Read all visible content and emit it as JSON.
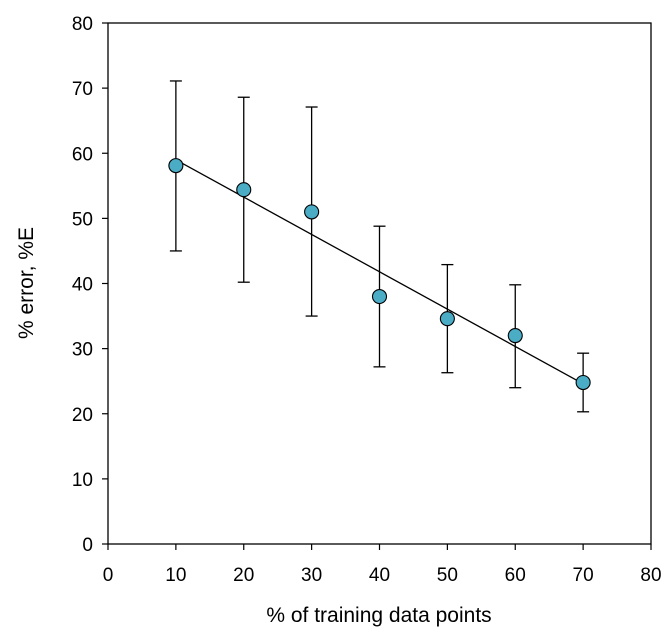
{
  "chart_data": {
    "type": "scatter",
    "title": "",
    "xlabel": "% of training data points",
    "ylabel": "% error, %E",
    "xlim": [
      0,
      80
    ],
    "ylim": [
      0,
      80
    ],
    "x_ticks": [
      0,
      10,
      20,
      30,
      40,
      50,
      60,
      70,
      80
    ],
    "y_ticks": [
      0,
      10,
      20,
      30,
      40,
      50,
      60,
      70,
      80
    ],
    "grid": false,
    "legend": "none",
    "series": [
      {
        "marker_color": "#4bacc6",
        "x": [
          10,
          20,
          30,
          40,
          50,
          60,
          70
        ],
        "y": [
          58.1,
          54.4,
          51.0,
          38.0,
          34.6,
          32.0,
          24.8
        ],
        "error_upper": [
          71.1,
          68.6,
          67.1,
          48.8,
          42.9,
          39.8,
          29.3
        ],
        "error_lower": [
          45.0,
          40.2,
          35.0,
          27.2,
          26.3,
          24.0,
          20.3
        ]
      }
    ],
    "trendline": {
      "type": "linear",
      "x": [
        10,
        70
      ],
      "y": [
        59.0,
        24.6
      ],
      "color": "#000000"
    }
  }
}
